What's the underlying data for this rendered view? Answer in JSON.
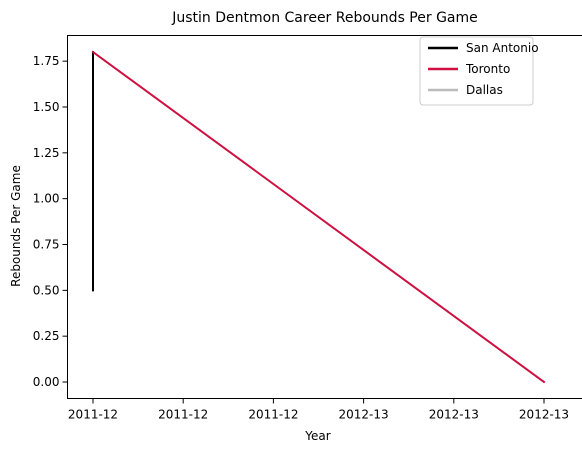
{
  "chart_data": {
    "type": "line",
    "title": "Justin Dentmon Career Rebounds Per Game",
    "xlabel": "Year",
    "ylabel": "Rebounds Per Game",
    "x_tick_labels": [
      "2011-12",
      "2011-12",
      "2011-12",
      "2012-13",
      "2012-13",
      "2012-13"
    ],
    "y_ticks": [
      0.0,
      0.25,
      0.5,
      0.75,
      1.0,
      1.25,
      1.5,
      1.75
    ],
    "y_tick_labels": [
      "0.00",
      "0.25",
      "0.50",
      "0.75",
      "1.00",
      "1.25",
      "1.50",
      "1.75"
    ],
    "ylim": [
      -0.09,
      1.89
    ],
    "x_categories": [
      "2011-12",
      "2012-13"
    ],
    "grid": false,
    "legend_position": "top-right",
    "series": [
      {
        "name": "San Antonio",
        "color": "#000000",
        "x": [
          "2011-12",
          "2011-12"
        ],
        "y": [
          0.5,
          1.8
        ]
      },
      {
        "name": "Toronto",
        "color": "#CE1141",
        "x": [
          "2011-12",
          "2012-13"
        ],
        "y": [
          1.8,
          0.0
        ]
      },
      {
        "name": "Dallas",
        "color": "#BBBBBB",
        "x": [
          "2012-13"
        ],
        "y": [
          0.0
        ]
      }
    ]
  }
}
